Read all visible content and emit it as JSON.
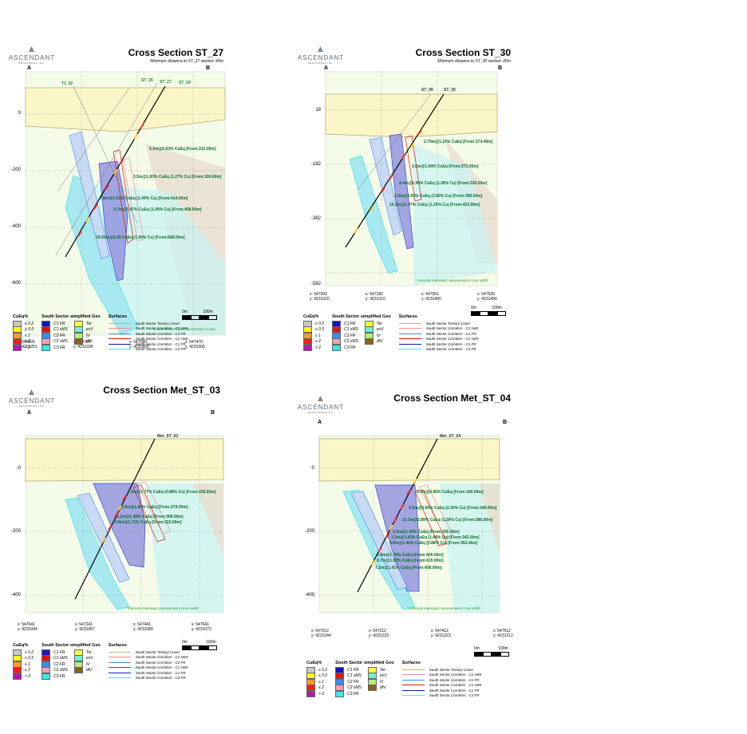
{
  "logo": {
    "name": "ASCENDANT",
    "sub": "RESOURCES INC."
  },
  "panels": [
    {
      "id": "st27",
      "title": "Cross Section ST_27",
      "subtitle": "Minimum distance to ST_27 section: 40m",
      "end_a": "A",
      "end_b": "B",
      "y_ticks": [
        "0",
        "-200",
        "-400",
        "-600"
      ],
      "hole_labels": [
        "T1_02",
        "ST_26",
        "ST_27",
        "ST_29"
      ],
      "intercepts": [
        "5.3m@0.63% CuEq [From:212.00m]",
        "3.5m@1.83% CuEq (1.27% Cu) [From:324.00m]",
        "7.8m@2.61% CuEq (1.49% Cu) [From:414.00m]",
        "3.7m@1.47% CuEq (1.09% Cu) [From:458.00m]",
        "10.00m@2.39 CuEq (1.90% Cu) [From:568.00m]"
      ],
      "note": "* Intervals intercepts represented in true",
      "coords": [
        "x: 546926\ny: 4231251",
        "x: 547107\ny: 4231336",
        "x: 547289\ny: 4231420",
        "x: 547470\ny: 4231505"
      ],
      "scale": [
        "0m",
        "100m"
      ]
    },
    {
      "id": "st30",
      "title": "Cross Section ST_30",
      "subtitle": "Minimum distance to ST_30 section: 20m",
      "end_a": "A",
      "end_b": "B",
      "y_ticks": [
        "18",
        "-182",
        "-382",
        "-582"
      ],
      "hole_labels": [
        "ST_05",
        "ST_30"
      ],
      "intercepts": [
        "2.70m@1.15% CuEq [From:174.40m]",
        "2.6m@1.04% CuEq [From:273.00m]",
        "4.4m@1.99% CuEq (1.28% Cu) [From:339.00m]",
        "2.9m@3.93% CuEq (2.80% Cu) [From:395.00m]",
        "10.1m@1.97% CuEq (1.29% Cu) [From:423.00m]"
      ],
      "note": "* Intervals intercepts represented in true width",
      "coords": [
        "x: 547003\ny: 4231220",
        "x: 547182\ny: 4231310",
        "x: 547361\ny: 4231400",
        "x: 547539\ny: 4231490"
      ],
      "scale": [
        "0m",
        "100m"
      ]
    },
    {
      "id": "met03",
      "title": "Cross Section Met_ST_03",
      "subtitle": "",
      "end_a": "A",
      "end_b": "B",
      "y_ticks": [
        "-0",
        "-200",
        "-400"
      ],
      "hole_labels": [
        "Met_ST_03"
      ],
      "intercepts": [
        "7.5m@1.77% CuEq (0.88% Cu) [From:226.00m]",
        "2.0m@1.88% CuEq [From:274.00m]",
        "2.2m@1.48% CuEq [From:308.00m]",
        "4.8m@1.71% CuEq [From:322.00m]"
      ],
      "note": "* Intervals intercepts represented in true width",
      "coords": [
        "x: 547041\ny: 4231094",
        "x: 547241\ny: 4231087",
        "x: 547441\ny: 4231080",
        "x: 547641\ny: 4231073"
      ],
      "scale": [
        "0m",
        "100m"
      ]
    },
    {
      "id": "met04",
      "title": "Cross Section Met_ST_04",
      "subtitle": "",
      "end_a": "A",
      "end_b": "B",
      "y_ticks": [
        "-0",
        "-200",
        "-400"
      ],
      "hole_labels": [
        "Met_ST_04"
      ],
      "intercepts": [
        "2.4m@0.85% CuEq [From:180.00m]",
        "2.5m@3.65% CuEq (2.30% Cu) [From:246.00m]",
        "10.2m@2.89% CuEq (1.29% Cu) [From:286.00m]",
        "3.3m@1.29% CuEq [From:330.00m]",
        "3.3m@3.43% CuEq (1.44% Cu) [From:342.00m]",
        "9.8m@1.46% CuEq (0.88% Cu) [From:352.40m]",
        "3.4m@1.79% CuEq [From:405.00m]",
        "8.7m@1.92% CuEq [From:415.00m]",
        "7.2m@1.41% CuEq [From:438.00m]"
      ],
      "note": "* Intervals intercepts represented in true width",
      "coords": [
        "x: 547012\ny: 4231244",
        "x: 547212\ny: 4231233",
        "x: 547412\ny: 4231223",
        "x: 547612\ny: 4231212"
      ],
      "scale": [
        "0m",
        "100m"
      ]
    }
  ],
  "legend": {
    "cueq_title": "CuEq%",
    "cueq": [
      {
        "label": "≤ 0.2",
        "color": "#c8c8c8"
      },
      {
        "label": "≤ 0.5",
        "color": "#ffff00"
      },
      {
        "label": "≤ 1",
        "color": "#ff9a2e"
      },
      {
        "label": "≤ 2",
        "color": "#ff1a1a"
      },
      {
        "label": "> 2",
        "color": "#b01ab0"
      }
    ],
    "geo_title": "South Sector simplified Geo",
    "geo_col1": [
      {
        "label": "C1 FR",
        "color": "#1414c8"
      },
      {
        "label": "C1 sMS",
        "color": "#e01414"
      },
      {
        "label": "C2 FR",
        "color": "#3c8cf0"
      },
      {
        "label": "C2 sMS",
        "color": "#f0a0b4"
      },
      {
        "label": "C3 FR",
        "color": "#3ce8e8"
      }
    ],
    "geo_col2": [
      {
        "label": "Ter",
        "color": "#ffff33"
      },
      {
        "label": "esV",
        "color": "#6ef0d8"
      },
      {
        "label": "iV",
        "color": "#b4f078"
      },
      {
        "label": "dtV",
        "color": "#8c6414"
      }
    ],
    "surf_title": "Surfaces",
    "surfaces": [
      {
        "label": "South Sector Tertiary Cover",
        "color": "#c8b478"
      },
      {
        "label": "South Sector Corridors - C2 sMS",
        "color": "#f08ca0"
      },
      {
        "label": "South Sector Corridors - C2 FR",
        "color": "#3c8cf0"
      },
      {
        "label": "South Sector Corridors - C1 sMS",
        "color": "#e01414"
      },
      {
        "label": "South Sector Corridors - C1 FR",
        "color": "#1414c8"
      },
      {
        "label": "South Sector Corridors - C3 FR",
        "color": "#3ce8e8"
      }
    ]
  }
}
